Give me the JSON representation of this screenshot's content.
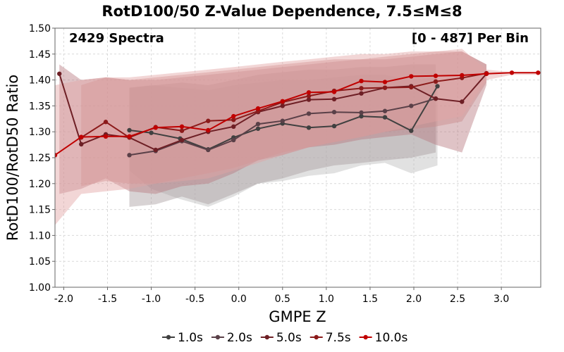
{
  "chart_data": {
    "type": "line",
    "title": "RotD100/50 Z-Value Dependence, 7.5≤M≤8",
    "xlabel": "GMPE Z",
    "ylabel": "RotD100/RotD50 Ratio",
    "xlim": [
      -2.1,
      3.45
    ],
    "ylim": [
      1.0,
      1.5
    ],
    "xticks": [
      -2.0,
      -1.5,
      -1.0,
      -0.5,
      0.0,
      0.5,
      1.0,
      1.5,
      2.0,
      2.5,
      3.0
    ],
    "yticks": [
      1.0,
      1.05,
      1.1,
      1.15,
      1.2,
      1.25,
      1.3,
      1.35,
      1.4,
      1.45,
      1.5
    ],
    "xtick_labels": [
      "-2.0",
      "-1.5",
      "-1.0",
      "-0.5",
      "0.0",
      "0.5",
      "1.0",
      "1.5",
      "2.0",
      "2.5",
      "3.0"
    ],
    "ytick_labels": [
      "1.00",
      "1.05",
      "1.10",
      "1.15",
      "1.20",
      "1.25",
      "1.30",
      "1.35",
      "1.40",
      "1.45",
      "1.50"
    ],
    "grid": true,
    "legend_position": "bottom",
    "annotations": {
      "left": "2429 Spectra",
      "right": "[0 - 487] Per Bin"
    },
    "series": [
      {
        "name": "1.0s",
        "color": "#404040",
        "band_color": "#bdbdbd",
        "x": [
          -1.25,
          -1.0,
          -0.67,
          -0.35,
          -0.06,
          0.22,
          0.5,
          0.8,
          1.09,
          1.4,
          1.67,
          1.97,
          2.27
        ],
        "y": [
          1.303,
          1.298,
          1.287,
          1.266,
          1.289,
          1.306,
          1.316,
          1.308,
          1.311,
          1.33,
          1.328,
          1.302,
          1.388
        ],
        "band_low": [
          1.225,
          1.19,
          1.17,
          1.155,
          1.175,
          1.2,
          1.205,
          1.215,
          1.22,
          1.235,
          1.24,
          1.22,
          1.235
        ],
        "band_high": [
          1.385,
          1.39,
          1.385,
          1.38,
          1.39,
          1.395,
          1.4,
          1.4,
          1.405,
          1.41,
          1.41,
          1.4,
          1.405
        ]
      },
      {
        "name": "2.0s",
        "color": "#5a4048",
        "band_color": "#a89da0",
        "x": [
          -1.25,
          -0.95,
          -0.65,
          -0.35,
          -0.06,
          0.22,
          0.5,
          0.8,
          1.09,
          1.4,
          1.67,
          1.97,
          2.25
        ],
        "y": [
          1.255,
          1.263,
          1.282,
          1.265,
          1.284,
          1.315,
          1.321,
          1.335,
          1.338,
          1.337,
          1.34,
          1.35,
          1.364
        ],
        "band_low": [
          1.155,
          1.16,
          1.175,
          1.16,
          1.18,
          1.2,
          1.21,
          1.225,
          1.235,
          1.24,
          1.245,
          1.25,
          1.26
        ],
        "band_high": [
          1.385,
          1.39,
          1.395,
          1.39,
          1.4,
          1.41,
          1.415,
          1.42,
          1.42,
          1.425,
          1.425,
          1.43,
          1.43
        ]
      },
      {
        "name": "5.0s",
        "color": "#6e1f25",
        "band_color": "#b87a80",
        "x": [
          -2.05,
          -1.8,
          -1.52,
          -1.25,
          -0.95,
          -0.65,
          -0.35,
          -0.06,
          0.22,
          0.5,
          0.8,
          1.09,
          1.4,
          1.67,
          1.97,
          2.25,
          2.55,
          2.83
        ],
        "y": [
          1.412,
          1.276,
          1.295,
          1.289,
          1.265,
          1.284,
          1.3,
          1.31,
          1.338,
          1.35,
          1.362,
          1.363,
          1.374,
          1.385,
          1.388,
          1.364,
          1.358,
          1.412
        ],
        "band_low": [
          1.18,
          1.19,
          1.21,
          1.185,
          1.18,
          1.195,
          1.2,
          1.22,
          1.245,
          1.255,
          1.27,
          1.275,
          1.285,
          1.29,
          1.295,
          1.275,
          1.26,
          1.39
        ],
        "band_high": [
          1.43,
          1.4,
          1.405,
          1.4,
          1.4,
          1.405,
          1.41,
          1.415,
          1.42,
          1.425,
          1.43,
          1.435,
          1.44,
          1.44,
          1.445,
          1.45,
          1.455,
          1.43
        ]
      },
      {
        "name": "7.5s",
        "color": "#8b1a1a",
        "band_color": "#c98a8a",
        "x": [
          -1.8,
          -1.52,
          -1.25,
          -0.95,
          -0.65,
          -0.35,
          -0.06,
          0.22,
          0.5,
          0.8,
          1.09,
          1.4,
          1.67,
          1.97,
          2.25,
          2.55,
          2.83
        ],
        "y": [
          1.289,
          1.319,
          1.289,
          1.309,
          1.302,
          1.321,
          1.323,
          1.34,
          1.357,
          1.369,
          1.379,
          1.384,
          1.385,
          1.386,
          1.397,
          1.404,
          1.413
        ],
        "band_low": [
          1.195,
          1.205,
          1.2,
          1.2,
          1.21,
          1.22,
          1.23,
          1.245,
          1.26,
          1.27,
          1.28,
          1.29,
          1.3,
          1.305,
          1.31,
          1.32,
          1.395
        ],
        "band_high": [
          1.39,
          1.405,
          1.4,
          1.405,
          1.41,
          1.415,
          1.42,
          1.425,
          1.43,
          1.435,
          1.44,
          1.44,
          1.445,
          1.45,
          1.455,
          1.455,
          1.43
        ]
      },
      {
        "name": "10.0s",
        "color": "#c00000",
        "band_color": "#e3a3a3",
        "x": [
          -2.1,
          -1.8,
          -1.52,
          -1.25,
          -0.95,
          -0.65,
          -0.35,
          -0.06,
          0.22,
          0.5,
          0.8,
          1.09,
          1.4,
          1.67,
          1.97,
          2.25,
          2.55,
          2.83,
          3.12,
          3.42
        ],
        "y": [
          1.255,
          1.29,
          1.291,
          1.291,
          1.308,
          1.31,
          1.303,
          1.33,
          1.345,
          1.359,
          1.376,
          1.377,
          1.398,
          1.396,
          1.407,
          1.408,
          1.409,
          1.412,
          1.414,
          1.414
        ],
        "band_low": [
          1.12,
          1.18,
          1.185,
          1.19,
          1.2,
          1.205,
          1.21,
          1.225,
          1.24,
          1.255,
          1.27,
          1.28,
          1.29,
          1.3,
          1.31,
          1.32,
          1.33,
          1.4,
          1.41,
          1.41
        ],
        "band_high": [
          1.39,
          1.4,
          1.405,
          1.405,
          1.41,
          1.415,
          1.42,
          1.425,
          1.43,
          1.435,
          1.44,
          1.445,
          1.45,
          1.45,
          1.455,
          1.455,
          1.46,
          1.42,
          1.415,
          1.415
        ]
      }
    ]
  }
}
